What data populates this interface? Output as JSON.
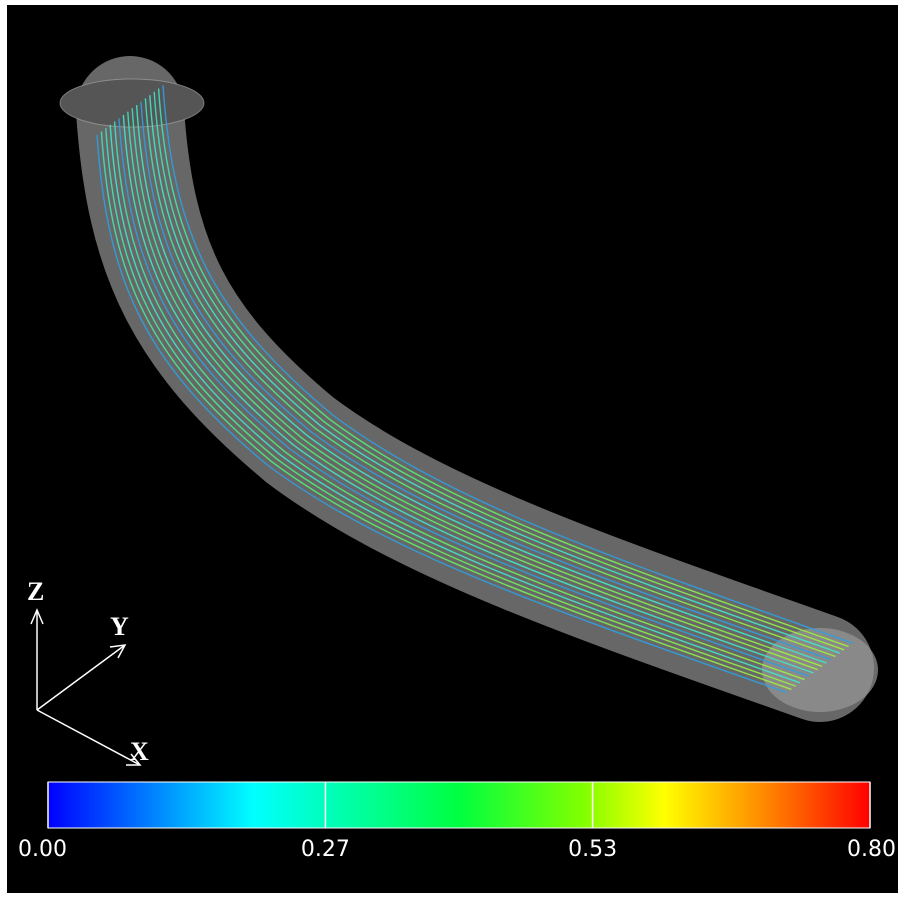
{
  "axes": {
    "z": "Z",
    "y": "Y",
    "x": "X"
  },
  "colorbar": {
    "range": [
      0,
      0.8
    ],
    "ticks": [
      {
        "value": 0,
        "label": "0.00"
      },
      {
        "value": 0.27,
        "label": "0.27"
      },
      {
        "value": 0.53,
        "label": "0.53"
      },
      {
        "value": 0.8,
        "label": "0.80"
      }
    ]
  }
}
